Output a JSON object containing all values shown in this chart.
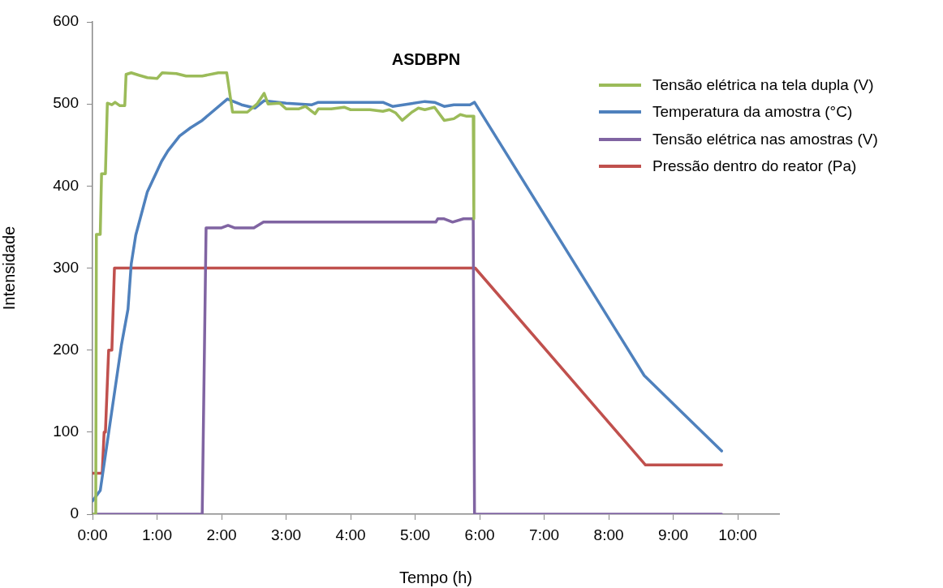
{
  "chart_data": {
    "type": "line",
    "title": "ASDBPN",
    "xlabel": "Tempo (h)",
    "ylabel": "Intensidade",
    "xlim": [
      0,
      10.64
    ],
    "xticks": [
      {
        "value": 0,
        "label": "0:00"
      },
      {
        "value": 1,
        "label": "1:00"
      },
      {
        "value": 2,
        "label": "2:00"
      },
      {
        "value": 3,
        "label": "3:00"
      },
      {
        "value": 4,
        "label": "4:00"
      },
      {
        "value": 5,
        "label": "5:00"
      },
      {
        "value": 6,
        "label": "6:00"
      },
      {
        "value": 7,
        "label": "7:00"
      },
      {
        "value": 8,
        "label": "8:00"
      },
      {
        "value": 9,
        "label": "9:00"
      },
      {
        "value": 10,
        "label": "10:00"
      }
    ],
    "ylim": [
      0,
      600
    ],
    "yticks": [
      0,
      100,
      200,
      300,
      400,
      500,
      600
    ],
    "grid": false,
    "legend": "top right",
    "marker": "none",
    "line_style": "solid",
    "series": [
      {
        "name": "Tensão elétrica na tela dupla (V)",
        "color": "#9bbb59",
        "x": [
          0,
          0.05,
          0.06,
          0.12,
          0.14,
          0.2,
          0.23,
          0.3,
          0.35,
          0.42,
          0.5,
          0.52,
          0.6,
          0.72,
          0.85,
          1.0,
          1.08,
          1.3,
          1.45,
          1.7,
          1.95,
          2.08,
          2.17,
          2.4,
          2.55,
          2.66,
          2.72,
          2.9,
          3.0,
          3.2,
          3.3,
          3.4,
          3.45,
          3.5,
          3.7,
          3.9,
          4.0,
          4.3,
          4.5,
          4.6,
          4.7,
          4.8,
          4.95,
          5.05,
          5.15,
          5.3,
          5.45,
          5.6,
          5.7,
          5.8,
          5.9,
          5.91
        ],
        "values": [
          0,
          0,
          341,
          341,
          415,
          415,
          501,
          499,
          502,
          498,
          498,
          536,
          538,
          535,
          532,
          531,
          538,
          537,
          534,
          534,
          538,
          538,
          490,
          490,
          500,
          513,
          500,
          501,
          494,
          494,
          497,
          491,
          488,
          494,
          494,
          496,
          493,
          493,
          491,
          493,
          489,
          480,
          490,
          495,
          493,
          496,
          480,
          482,
          487,
          485,
          485,
          360
        ]
      },
      {
        "name": "Temperatura da amostra (°C)",
        "color": "#4f81bd",
        "x": [
          0,
          0.12,
          0.45,
          0.55,
          0.6,
          0.67,
          0.85,
          1.07,
          1.17,
          1.35,
          1.52,
          1.7,
          2.09,
          2.31,
          2.52,
          2.66,
          3.0,
          3.4,
          3.5,
          4.5,
          4.65,
          4.9,
          5.15,
          5.3,
          5.45,
          5.6,
          5.85,
          5.92,
          8.55,
          9.75
        ],
        "values": [
          16,
          29,
          207,
          250,
          305,
          340,
          393,
          430,
          443,
          461,
          471,
          480,
          506,
          499,
          495,
          504,
          501,
          499,
          502,
          502,
          497,
          500,
          503,
          502,
          497,
          499,
          499,
          502,
          169,
          77
        ]
      },
      {
        "name": "Tensão elétrica nas amostras (V)",
        "color": "#8064a2",
        "x": [
          0,
          1.7,
          1.76,
          2.0,
          2.1,
          2.2,
          2.5,
          2.65,
          5.32,
          5.35,
          5.45,
          5.58,
          5.75,
          5.9,
          5.92,
          9.75
        ],
        "values": [
          0,
          0,
          349,
          349,
          352,
          349,
          349,
          356,
          356,
          360,
          360,
          356,
          360,
          360,
          0,
          0
        ]
      },
      {
        "name": "Pressão dentro do reator (Pa)",
        "color": "#c0504d",
        "x": [
          0,
          0.15,
          0.18,
          0.2,
          0.25,
          0.3,
          0.34,
          5.93,
          8.57,
          9.75
        ],
        "values": [
          50,
          50,
          100,
          100,
          200,
          200,
          300,
          300,
          60,
          60
        ]
      }
    ]
  }
}
